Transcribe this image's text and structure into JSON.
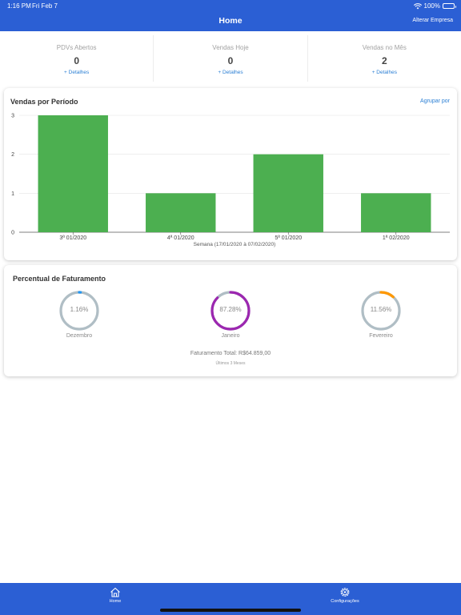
{
  "status_bar": {
    "time": "1:16 PM",
    "date": "Fri Feb 7",
    "battery": "100%"
  },
  "header": {
    "title": "Home",
    "action": "Alterar Empresa"
  },
  "stats": [
    {
      "label": "PDVs Abertos",
      "value": "0",
      "link": "+ Detalhes"
    },
    {
      "label": "Vendas Hoje",
      "value": "0",
      "link": "+ Detalhes"
    },
    {
      "label": "Vendas no Mês",
      "value": "2",
      "link": "+ Detalhes"
    }
  ],
  "sales_card": {
    "title": "Vendas por Período",
    "action": "Agrupar por"
  },
  "chart_data": {
    "type": "bar",
    "categories": [
      "3ª 01/2020",
      "4ª 01/2020",
      "5ª 01/2020",
      "1ª 02/2020"
    ],
    "values": [
      3,
      1,
      2,
      1
    ],
    "title": "",
    "xlabel": "Semana (17/01/2020 à 07/02/2020)",
    "ylabel": "",
    "yticks": [
      0,
      1,
      2,
      3
    ],
    "ylim": [
      0,
      3
    ],
    "color": "#4caf50",
    "grid": true
  },
  "billing_card": {
    "title": "Percentual de Faturamento",
    "gauges": [
      {
        "percent": 1.16,
        "label": "1.16%",
        "month": "Dezembro",
        "color": "#2196f3"
      },
      {
        "percent": 87.28,
        "label": "87.28%",
        "month": "Janeiro",
        "color": "#9c27b0"
      },
      {
        "percent": 11.56,
        "label": "11.56%",
        "month": "Fevereiro",
        "color": "#ff9800"
      }
    ],
    "track_color": "#b0bec5",
    "total": "Faturamento Total: R$64.859,00",
    "period": "Últimos 3 Meses"
  },
  "tabbar": {
    "home": "Home",
    "settings": "Configurações"
  }
}
